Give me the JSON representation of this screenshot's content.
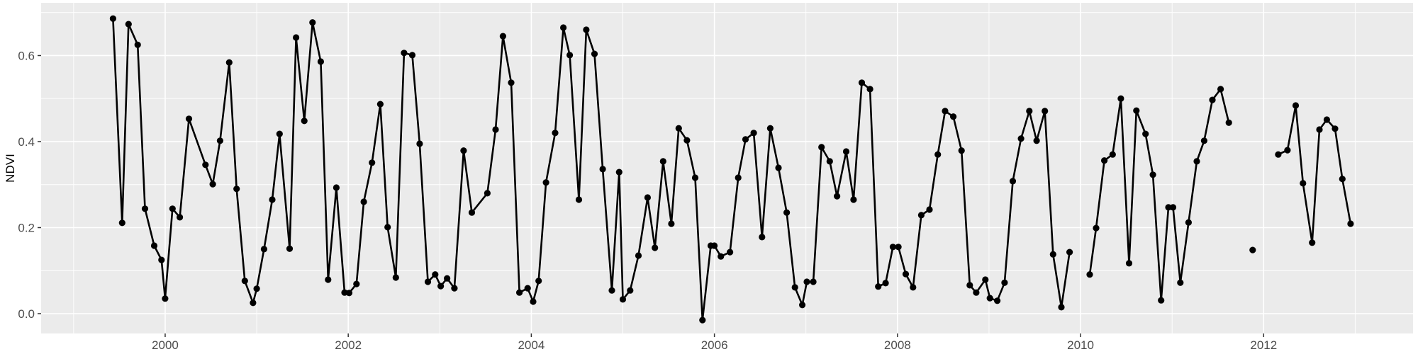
{
  "colors": {
    "outer_background": "#FFFFFF",
    "panel_background": "#EBEBEB",
    "gridline": "#FFFFFF",
    "line": "#000000",
    "point": "#000000",
    "axis_text": "#4D4D4D",
    "axis_title": "#000000",
    "tick_mark": "#333333"
  },
  "chart_data": {
    "type": "line",
    "title": "",
    "xlabel": "",
    "ylabel": "NDVI",
    "grid": true,
    "legend": "none",
    "xlim": [
      1998.645,
      2013.632
    ],
    "ylim": [
      -0.0461,
      0.7226
    ],
    "x_ticks": [
      2000,
      2002,
      2004,
      2006,
      2008,
      2010,
      2012
    ],
    "x_tick_labels": [
      "2000",
      "2002",
      "2004",
      "2006",
      "2008",
      "2010",
      "2012"
    ],
    "x_minor_ticks": [
      1999,
      2001,
      2003,
      2005,
      2007,
      2009,
      2011,
      2013
    ],
    "y_ticks": [
      0.0,
      0.2,
      0.4,
      0.6
    ],
    "y_tick_labels": [
      "0.0",
      "0.2",
      "0.4",
      "0.6"
    ],
    "y_minor_ticks": [
      0.1,
      0.3,
      0.5,
      0.7
    ],
    "series": [
      {
        "name": "NDVI",
        "segments": [
          [
            [
              1999.43,
              0.686
            ],
            [
              1999.53,
              0.211
            ],
            [
              1999.6,
              0.673
            ],
            [
              1999.7,
              0.625
            ],
            [
              1999.78,
              0.244
            ],
            [
              1999.88,
              0.158
            ],
            [
              1999.96,
              0.125
            ],
            [
              2000.0,
              0.035
            ],
            [
              2000.08,
              0.244
            ],
            [
              2000.16,
              0.224
            ],
            [
              2000.26,
              0.453
            ],
            [
              2000.44,
              0.346
            ],
            [
              2000.52,
              0.301
            ],
            [
              2000.6,
              0.402
            ],
            [
              2000.7,
              0.584
            ],
            [
              2000.78,
              0.29
            ],
            [
              2000.87,
              0.076
            ],
            [
              2000.96,
              0.025
            ],
            [
              2001.0,
              0.058
            ],
            [
              2001.08,
              0.15
            ],
            [
              2001.17,
              0.265
            ],
            [
              2001.25,
              0.418
            ],
            [
              2001.36,
              0.151
            ],
            [
              2001.43,
              0.642
            ],
            [
              2001.52,
              0.448
            ],
            [
              2001.61,
              0.677
            ],
            [
              2001.7,
              0.586
            ],
            [
              2001.78,
              0.079
            ],
            [
              2001.87,
              0.293
            ],
            [
              2001.96,
              0.049
            ],
            [
              2002.01,
              0.048
            ],
            [
              2002.09,
              0.069
            ],
            [
              2002.17,
              0.26
            ],
            [
              2002.26,
              0.351
            ],
            [
              2002.35,
              0.487
            ],
            [
              2002.43,
              0.201
            ],
            [
              2002.52,
              0.084
            ],
            [
              2002.61,
              0.606
            ],
            [
              2002.7,
              0.601
            ],
            [
              2002.78,
              0.395
            ],
            [
              2002.87,
              0.074
            ],
            [
              2002.95,
              0.091
            ],
            [
              2003.01,
              0.064
            ],
            [
              2003.08,
              0.082
            ],
            [
              2003.16,
              0.059
            ],
            [
              2003.26,
              0.379
            ],
            [
              2003.35,
              0.235
            ],
            [
              2003.52,
              0.28
            ],
            [
              2003.61,
              0.428
            ],
            [
              2003.69,
              0.645
            ],
            [
              2003.78,
              0.537
            ],
            [
              2003.87,
              0.049
            ],
            [
              2003.96,
              0.059
            ],
            [
              2004.02,
              0.028
            ],
            [
              2004.08,
              0.076
            ],
            [
              2004.16,
              0.305
            ],
            [
              2004.26,
              0.42
            ],
            [
              2004.35,
              0.665
            ],
            [
              2004.42,
              0.601
            ],
            [
              2004.52,
              0.265
            ],
            [
              2004.6,
              0.66
            ],
            [
              2004.69,
              0.604
            ],
            [
              2004.78,
              0.336
            ],
            [
              2004.88,
              0.054
            ],
            [
              2004.96,
              0.329
            ],
            [
              2005.0,
              0.033
            ],
            [
              2005.08,
              0.054
            ],
            [
              2005.17,
              0.135
            ],
            [
              2005.27,
              0.27
            ],
            [
              2005.35,
              0.153
            ],
            [
              2005.44,
              0.354
            ],
            [
              2005.53,
              0.209
            ],
            [
              2005.61,
              0.431
            ],
            [
              2005.7,
              0.403
            ],
            [
              2005.79,
              0.316
            ],
            [
              2005.87,
              -0.015
            ],
            [
              2005.96,
              0.158
            ],
            [
              2006.0,
              0.158
            ],
            [
              2006.07,
              0.133
            ],
            [
              2006.17,
              0.143
            ],
            [
              2006.26,
              0.316
            ],
            [
              2006.34,
              0.405
            ],
            [
              2006.43,
              0.42
            ],
            [
              2006.52,
              0.178
            ],
            [
              2006.61,
              0.431
            ],
            [
              2006.7,
              0.339
            ],
            [
              2006.79,
              0.235
            ],
            [
              2006.88,
              0.061
            ],
            [
              2006.96,
              0.02
            ],
            [
              2007.01,
              0.074
            ],
            [
              2007.08,
              0.074
            ],
            [
              2007.17,
              0.387
            ],
            [
              2007.26,
              0.354
            ],
            [
              2007.34,
              0.273
            ],
            [
              2007.44,
              0.377
            ],
            [
              2007.52,
              0.265
            ],
            [
              2007.61,
              0.537
            ],
            [
              2007.7,
              0.522
            ],
            [
              2007.79,
              0.063
            ],
            [
              2007.87,
              0.071
            ],
            [
              2007.95,
              0.155
            ],
            [
              2008.01,
              0.155
            ],
            [
              2008.09,
              0.092
            ],
            [
              2008.17,
              0.061
            ],
            [
              2008.26,
              0.229
            ],
            [
              2008.35,
              0.242
            ],
            [
              2008.44,
              0.37
            ],
            [
              2008.52,
              0.471
            ],
            [
              2008.61,
              0.458
            ],
            [
              2008.7,
              0.379
            ],
            [
              2008.79,
              0.066
            ],
            [
              2008.86,
              0.049
            ],
            [
              2008.96,
              0.079
            ],
            [
              2009.01,
              0.036
            ],
            [
              2009.09,
              0.03
            ],
            [
              2009.17,
              0.072
            ],
            [
              2009.26,
              0.308
            ],
            [
              2009.35,
              0.407
            ],
            [
              2009.44,
              0.471
            ],
            [
              2009.52,
              0.402
            ],
            [
              2009.61,
              0.471
            ],
            [
              2009.7,
              0.138
            ],
            [
              2009.79,
              0.015
            ],
            [
              2009.88,
              0.143
            ]
          ],
          [
            [
              2010.1,
              0.091
            ],
            [
              2010.17,
              0.199
            ],
            [
              2010.26,
              0.356
            ],
            [
              2010.35,
              0.37
            ],
            [
              2010.44,
              0.5
            ],
            [
              2010.53,
              0.117
            ],
            [
              2010.61,
              0.472
            ],
            [
              2010.71,
              0.418
            ],
            [
              2010.79,
              0.323
            ],
            [
              2010.88,
              0.031
            ],
            [
              2010.96,
              0.247
            ],
            [
              2011.01,
              0.247
            ],
            [
              2011.09,
              0.072
            ],
            [
              2011.18,
              0.212
            ],
            [
              2011.27,
              0.354
            ],
            [
              2011.35,
              0.402
            ],
            [
              2011.44,
              0.497
            ],
            [
              2011.53,
              0.522
            ],
            [
              2011.62,
              0.444
            ]
          ],
          [
            [
              2011.88,
              0.148
            ]
          ],
          [
            [
              2012.16,
              0.37
            ],
            [
              2012.26,
              0.38
            ],
            [
              2012.35,
              0.484
            ],
            [
              2012.43,
              0.303
            ],
            [
              2012.53,
              0.165
            ],
            [
              2012.61,
              0.428
            ],
            [
              2012.69,
              0.451
            ],
            [
              2012.78,
              0.43
            ],
            [
              2012.86,
              0.313
            ],
            [
              2012.95,
              0.209
            ]
          ]
        ]
      }
    ]
  }
}
